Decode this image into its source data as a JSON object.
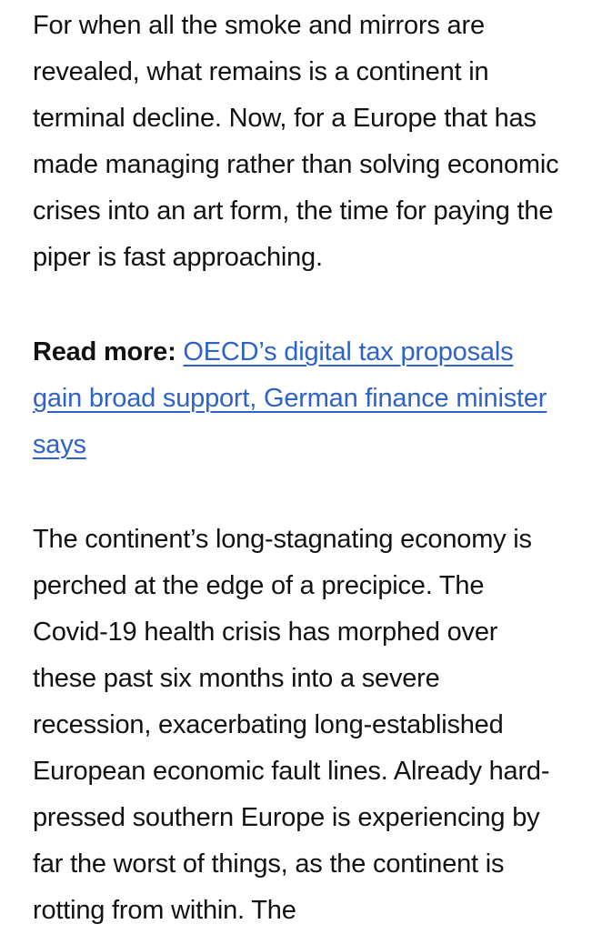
{
  "article": {
    "paragraph_intro": "For when all the smoke and mirrors are revealed, what remains is a continent in terminal decline. Now, for a Europe that has made managing rather than solving economic crises into an art form, the time for paying the piper is fast approaching.",
    "read_more": {
      "label": "Read more:",
      "link_text": "OECD’s digital tax proposals gain broad support, German finance minister says",
      "link_color": "#2e62cb"
    },
    "paragraph_body": "The continent’s long-stagnating economy is perched at the edge of a precipice. The Covid-19 health crisis has morphed over these past six months into a severe recession, exacerbating long-established European economic fault lines. Already hard-pressed southern Europe is experiencing by far the worst of things, as the continent is rotting from within. The",
    "text_color": "#121212",
    "background_color": "#ffffff"
  }
}
